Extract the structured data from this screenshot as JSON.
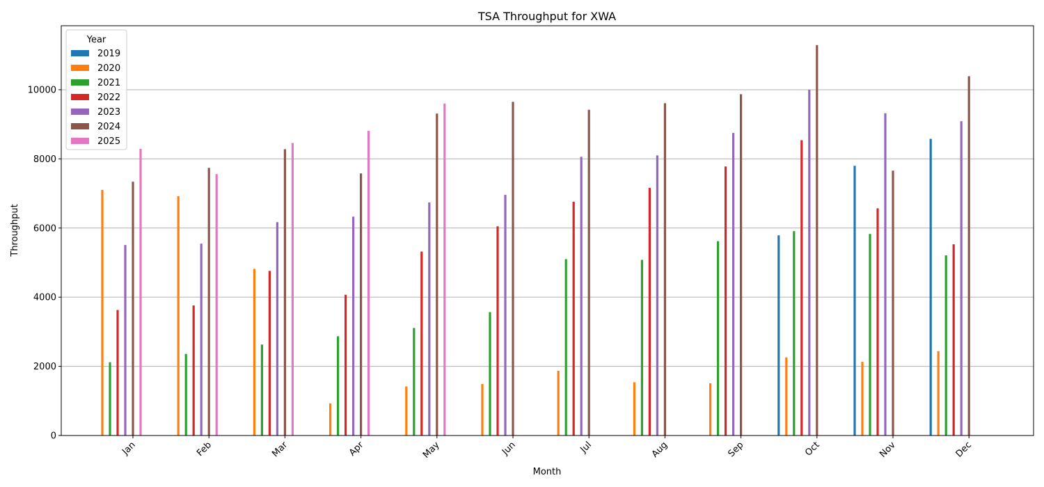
{
  "chart_data": {
    "type": "bar",
    "title": "TSA Throughput for XWA",
    "xlabel": "Month",
    "ylabel": "Throughput",
    "categories": [
      "Jan",
      "Feb",
      "Mar",
      "Apr",
      "May",
      "Jun",
      "Jul",
      "Aug",
      "Sep",
      "Oct",
      "Nov",
      "Dec"
    ],
    "ylim": [
      0,
      11850
    ],
    "yticks": [
      0,
      2000,
      4000,
      6000,
      8000,
      10000
    ],
    "grid": "y",
    "legend": {
      "title": "Year",
      "placement": "top-left"
    },
    "series": [
      {
        "name": "2019",
        "color": "#1f77b4",
        "values": [
          null,
          null,
          null,
          null,
          null,
          null,
          null,
          null,
          null,
          5790,
          7800,
          8580
        ]
      },
      {
        "name": "2020",
        "color": "#ff7f0e",
        "values": [
          7100,
          6920,
          4820,
          930,
          1420,
          1490,
          1870,
          1540,
          1510,
          2260,
          2130,
          2440
        ]
      },
      {
        "name": "2021",
        "color": "#2ca02c",
        "values": [
          2120,
          2360,
          2630,
          2870,
          3110,
          3570,
          5100,
          5080,
          5620,
          5910,
          5830,
          5210
        ]
      },
      {
        "name": "2022",
        "color": "#d62728",
        "values": [
          3630,
          3760,
          4760,
          4070,
          5320,
          6050,
          6760,
          7160,
          7780,
          8540,
          6570,
          5530
        ]
      },
      {
        "name": "2023",
        "color": "#9467bd",
        "values": [
          5510,
          5550,
          6170,
          6330,
          6740,
          6960,
          8060,
          8100,
          8750,
          10000,
          9320,
          9090
        ]
      },
      {
        "name": "2024",
        "color": "#8c564b",
        "values": [
          7340,
          7740,
          8280,
          7580,
          9310,
          9650,
          9420,
          9610,
          9870,
          11290,
          7660,
          10390
        ]
      },
      {
        "name": "2025",
        "color": "#e377c2",
        "values": [
          8290,
          7560,
          8460,
          8810,
          9600,
          null,
          null,
          null,
          null,
          null,
          null,
          null
        ]
      }
    ]
  }
}
